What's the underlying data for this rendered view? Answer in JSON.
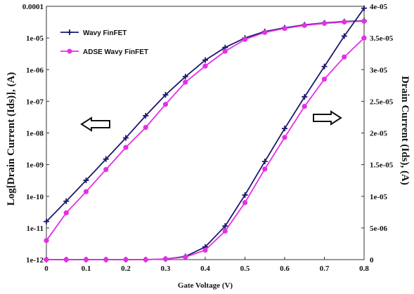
{
  "chart_data": {
    "type": "line",
    "xlabel": "Gate Voltage (V)",
    "ylabel_left": "Log[Drain Current (Ids)], (A)",
    "ylabel_right": "Drain Current (Ids), (A)",
    "x_ticks": [
      "0",
      "0.1",
      "0.2",
      "0.3",
      "0.4",
      "0.5",
      "0.6",
      "0.7",
      "0.8"
    ],
    "y_left_ticks": [
      "1e-12",
      "1e-11",
      "1e-10",
      "1e-09",
      "1e-08",
      "1e-07",
      "1e-06",
      "1e-05",
      "0.0001"
    ],
    "y_right_ticks": [
      "0",
      "5e-06",
      "1e-05",
      "1.5e-05",
      "2e-05",
      "2.5e-05",
      "3e-05",
      "3.5e-05",
      "4e-05"
    ],
    "xlim": [
      0,
      0.8
    ],
    "ylim_left": [
      1e-12,
      0.0001
    ],
    "ylim_right": [
      0,
      4e-05
    ],
    "yscale_left": "log",
    "yscale_right": "linear",
    "legend_position": "top-left",
    "x": [
      0,
      0.05,
      0.1,
      0.15,
      0.2,
      0.25,
      0.3,
      0.35,
      0.4,
      0.45,
      0.5,
      0.55,
      0.6,
      0.65,
      0.7,
      0.75,
      0.8
    ],
    "series": [
      {
        "name": "Wavy FinFET",
        "axis": "left",
        "color": "#1a1a6e",
        "marker": "plus",
        "values": [
          1.6e-11,
          7e-11,
          3.2e-10,
          1.5e-09,
          7e-09,
          3.5e-08,
          1.6e-07,
          6e-07,
          2e-06,
          5e-06,
          1e-05,
          1.6e-05,
          2.1e-05,
          2.6e-05,
          3e-05,
          3.3e-05,
          3.5e-05
        ]
      },
      {
        "name": "ADSE Wavy FinFET",
        "axis": "left",
        "color": "#e62ee6",
        "marker": "circle",
        "values": [
          4e-12,
          3e-11,
          1.4e-10,
          7e-10,
          3.5e-09,
          1.5e-08,
          8e-08,
          4e-07,
          1.3e-06,
          3.8e-06,
          9e-06,
          1.5e-05,
          2e-05,
          2.5e-05,
          2.9e-05,
          3.2e-05,
          3.4e-05
        ]
      },
      {
        "name": "",
        "axis": "right",
        "color": "#1a1a6e",
        "marker": "plus",
        "values": [
          0,
          0,
          0,
          0,
          0,
          0,
          1e-07,
          5e-07,
          2e-06,
          5.3e-06,
          1.02e-05,
          1.55e-05,
          2.07e-05,
          2.57e-05,
          3.05e-05,
          3.53e-05,
          3.97e-05
        ]
      },
      {
        "name": "",
        "axis": "right",
        "color": "#e62ee6",
        "marker": "circle",
        "values": [
          0,
          0,
          0,
          0,
          0,
          0,
          1e-07,
          4e-07,
          1.5e-06,
          4.5e-06,
          9e-06,
          1.43e-05,
          1.93e-05,
          2.42e-05,
          2.85e-05,
          3.2e-05,
          3.5e-05
        ]
      }
    ]
  }
}
